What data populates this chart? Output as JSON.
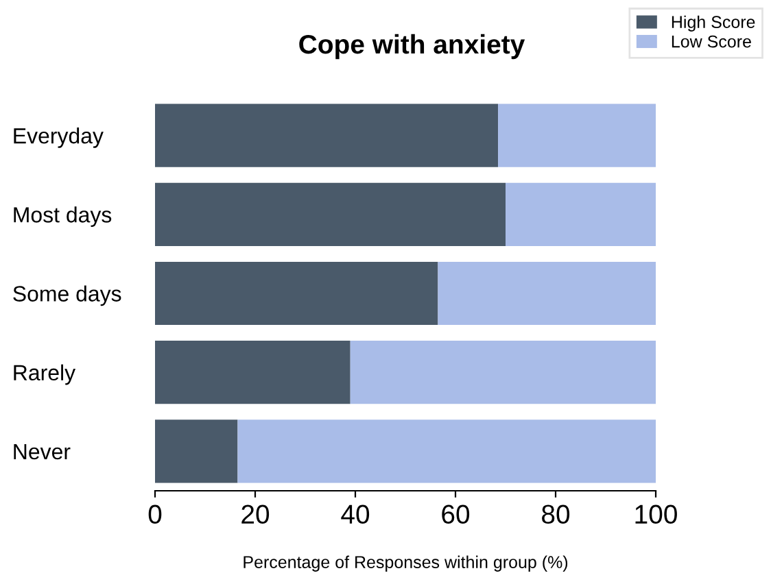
{
  "chart_data": {
    "type": "bar",
    "orientation": "horizontal",
    "stacked": true,
    "title": "Cope with anxiety",
    "xlabel": "Percentage of Responses within group (%)",
    "categories": [
      "Everyday",
      "Most days",
      "Some days",
      "Rarely",
      "Never"
    ],
    "series": [
      {
        "name": "High Score",
        "color": "#4a5a6a",
        "values": [
          68.5,
          70,
          56.5,
          39,
          16.5
        ]
      },
      {
        "name": "Low Score",
        "color": "#a9bce8",
        "values": [
          31.5,
          30,
          43.5,
          61,
          83.5
        ]
      }
    ],
    "xlim": [
      0,
      100
    ],
    "xticks": [
      0,
      20,
      40,
      60,
      80,
      100
    ],
    "grid": false,
    "legend": "top right"
  }
}
